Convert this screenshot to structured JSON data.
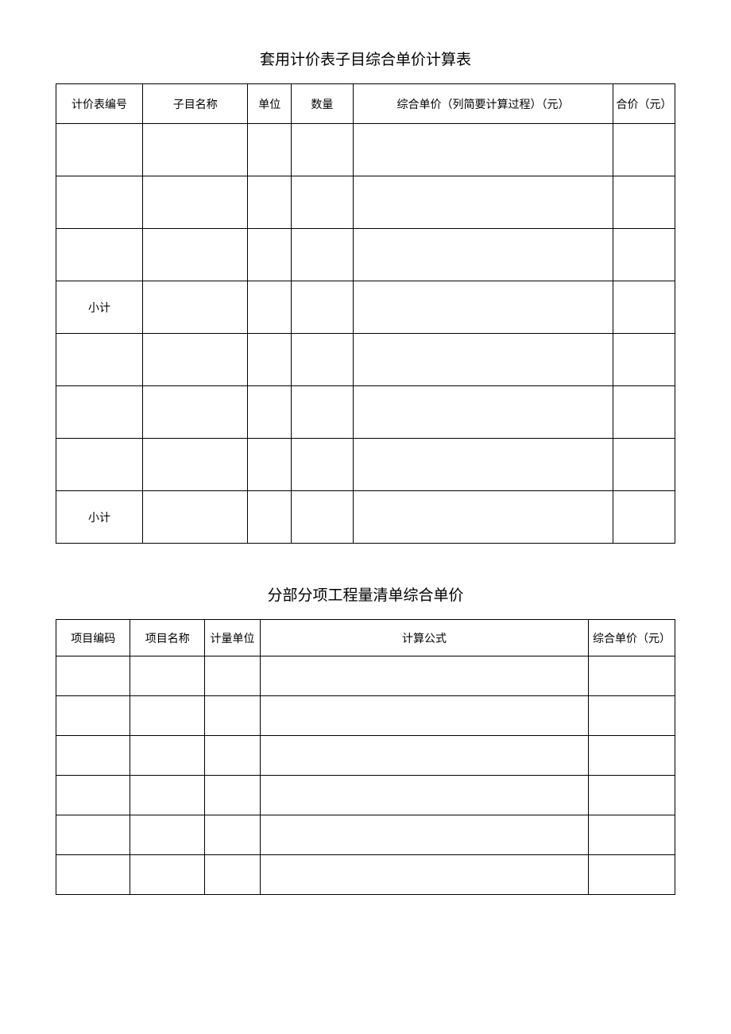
{
  "table1": {
    "title": "套用计价表子目综合单价计算表",
    "columns": {
      "col1": "计价表编号",
      "col2": "子目名称",
      "col3": "单位",
      "col4": "数量",
      "col5": "综合单价（列简要计算过程）（元）",
      "col6": "合价（元）"
    },
    "widths": {
      "col1": "14%",
      "col2": "17%",
      "col3": "7%",
      "col4": "10%",
      "col5": "42%",
      "col6": "10%"
    },
    "rows": [
      {
        "c1": "",
        "c2": "",
        "c3": "",
        "c4": "",
        "c5": "",
        "c6": ""
      },
      {
        "c1": "",
        "c2": "",
        "c3": "",
        "c4": "",
        "c5": "",
        "c6": ""
      },
      {
        "c1": "",
        "c2": "",
        "c3": "",
        "c4": "",
        "c5": "",
        "c6": ""
      },
      {
        "c1": "小计",
        "c2": "",
        "c3": "",
        "c4": "",
        "c5": "",
        "c6": ""
      },
      {
        "c1": "",
        "c2": "",
        "c3": "",
        "c4": "",
        "c5": "",
        "c6": ""
      },
      {
        "c1": "",
        "c2": "",
        "c3": "",
        "c4": "",
        "c5": "",
        "c6": ""
      },
      {
        "c1": "",
        "c2": "",
        "c3": "",
        "c4": "",
        "c5": "",
        "c6": ""
      },
      {
        "c1": "小计",
        "c2": "",
        "c3": "",
        "c4": "",
        "c5": "",
        "c6": ""
      }
    ]
  },
  "table2": {
    "title": "分部分项工程量清单综合单价",
    "columns": {
      "col1": "项目编码",
      "col2": "项目名称",
      "col3": "计量单位",
      "col4": "计算公式",
      "col5": "综合单价（元）"
    },
    "widths": {
      "col1": "12%",
      "col2": "12%",
      "col3": "9%",
      "col4": "53%",
      "col5": "14%"
    },
    "rows": [
      {
        "c1": "",
        "c2": "",
        "c3": "",
        "c4": "",
        "c5": ""
      },
      {
        "c1": "",
        "c2": "",
        "c3": "",
        "c4": "",
        "c5": ""
      },
      {
        "c1": "",
        "c2": "",
        "c3": "",
        "c4": "",
        "c5": ""
      },
      {
        "c1": "",
        "c2": "",
        "c3": "",
        "c4": "",
        "c5": ""
      },
      {
        "c1": "",
        "c2": "",
        "c3": "",
        "c4": "",
        "c5": ""
      },
      {
        "c1": "",
        "c2": "",
        "c3": "",
        "c4": "",
        "c5": ""
      }
    ]
  }
}
